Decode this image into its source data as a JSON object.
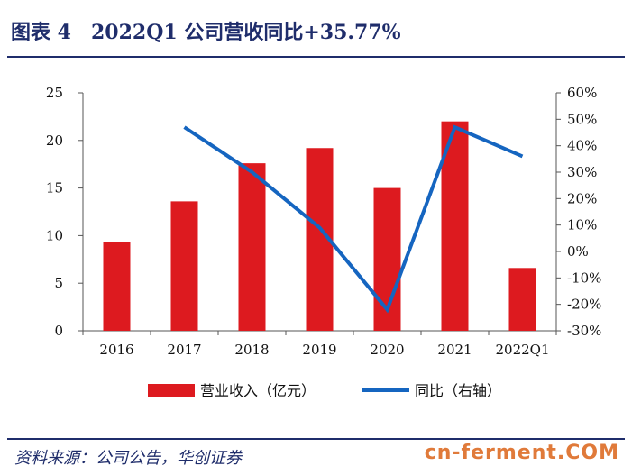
{
  "header": {
    "figure_title": "图表 4　2022Q1 公司营收同比+35.77%"
  },
  "footer": {
    "source": "资料来源：公司公告，华创证券",
    "watermark": "cn-ferment.COM"
  },
  "colors": {
    "bar": "#dd1a1f",
    "line": "#1565c0",
    "title": "#1f2d6b",
    "watermark": "#e07a3a"
  },
  "chart_data": {
    "type": "bar",
    "categories": [
      "2016",
      "2017",
      "2018",
      "2019",
      "2020",
      "2021",
      "2022Q1"
    ],
    "series": [
      {
        "name": "营业收入（亿元）",
        "type": "bar",
        "axis": "left",
        "values": [
          9.3,
          13.6,
          17.6,
          19.2,
          15.0,
          22.0,
          6.6
        ]
      },
      {
        "name": "同比（右轴）",
        "type": "line",
        "axis": "right",
        "values": [
          null,
          47.0,
          30.0,
          9.0,
          -22.0,
          47.0,
          36.0
        ]
      }
    ],
    "left_axis": {
      "ylim": [
        0,
        25
      ],
      "ticks": [
        "0",
        "5",
        "10",
        "15",
        "20",
        "25"
      ]
    },
    "right_axis": {
      "ylim": [
        -30,
        60
      ],
      "ticks": [
        "-30%",
        "-20%",
        "-10%",
        "0%",
        "10%",
        "20%",
        "30%",
        "40%",
        "50%",
        "60%"
      ]
    },
    "legend": [
      {
        "label": "营业收入（亿元）",
        "kind": "bar"
      },
      {
        "label": "同比（右轴）",
        "kind": "line"
      }
    ],
    "legend_position": "bottom",
    "grid": false
  }
}
